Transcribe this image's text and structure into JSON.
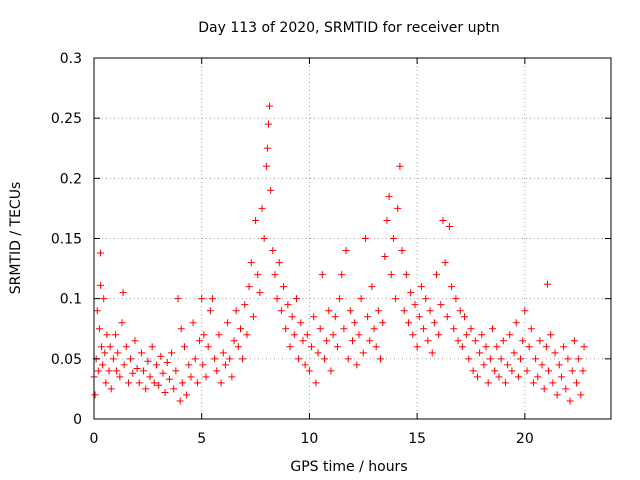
{
  "chart_data": {
    "type": "scatter",
    "title": "Day 113 of 2020, SRMTID for receiver uptn",
    "xlabel": "GPS time / hours",
    "ylabel": "SRMTID / TECUs",
    "xlim": [
      0,
      24
    ],
    "ylim": [
      0,
      0.3
    ],
    "x_ticks": [
      0,
      5,
      10,
      15,
      20
    ],
    "x_tick_labels": [
      "0",
      "5",
      "10",
      "15",
      "20"
    ],
    "y_ticks": [
      0,
      0.05,
      0.1,
      0.15,
      0.2,
      0.25,
      0.3
    ],
    "y_tick_labels": [
      "0",
      "0.05",
      "0.1",
      "0.15",
      "0.2",
      "0.25",
      "0.3"
    ],
    "grid": true,
    "marker": "+",
    "series_color": "#ff0000",
    "series": [
      {
        "name": "SRMTID",
        "points": [
          [
            0.0,
            0.035
          ],
          [
            0.05,
            0.02
          ],
          [
            0.1,
            0.05
          ],
          [
            0.15,
            0.09
          ],
          [
            0.2,
            0.04
          ],
          [
            0.25,
            0.075
          ],
          [
            0.3,
            0.111
          ],
          [
            0.3,
            0.138
          ],
          [
            0.35,
            0.06
          ],
          [
            0.4,
            0.045
          ],
          [
            0.45,
            0.1
          ],
          [
            0.5,
            0.055
          ],
          [
            0.55,
            0.03
          ],
          [
            0.6,
            0.07
          ],
          [
            0.7,
            0.04
          ],
          [
            0.75,
            0.06
          ],
          [
            0.8,
            0.025
          ],
          [
            0.9,
            0.05
          ],
          [
            1.0,
            0.07
          ],
          [
            1.05,
            0.04
          ],
          [
            1.1,
            0.055
          ],
          [
            1.2,
            0.035
          ],
          [
            1.3,
            0.08
          ],
          [
            1.35,
            0.105
          ],
          [
            1.4,
            0.045
          ],
          [
            1.5,
            0.06
          ],
          [
            1.6,
            0.03
          ],
          [
            1.7,
            0.05
          ],
          [
            1.8,
            0.038
          ],
          [
            1.9,
            0.065
          ],
          [
            2.0,
            0.042
          ],
          [
            2.1,
            0.03
          ],
          [
            2.2,
            0.055
          ],
          [
            2.3,
            0.04
          ],
          [
            2.4,
            0.025
          ],
          [
            2.5,
            0.048
          ],
          [
            2.6,
            0.035
          ],
          [
            2.7,
            0.06
          ],
          [
            2.8,
            0.03
          ],
          [
            2.9,
            0.045
          ],
          [
            3.0,
            0.028
          ],
          [
            3.1,
            0.052
          ],
          [
            3.2,
            0.038
          ],
          [
            3.3,
            0.022
          ],
          [
            3.4,
            0.047
          ],
          [
            3.5,
            0.033
          ],
          [
            3.6,
            0.055
          ],
          [
            3.7,
            0.025
          ],
          [
            3.8,
            0.04
          ],
          [
            3.9,
            0.1
          ],
          [
            4.0,
            0.015
          ],
          [
            4.05,
            0.075
          ],
          [
            4.1,
            0.03
          ],
          [
            4.2,
            0.06
          ],
          [
            4.3,
            0.02
          ],
          [
            4.4,
            0.045
          ],
          [
            4.5,
            0.035
          ],
          [
            4.6,
            0.08
          ],
          [
            4.7,
            0.05
          ],
          [
            4.8,
            0.03
          ],
          [
            4.9,
            0.065
          ],
          [
            5.0,
            0.1
          ],
          [
            5.05,
            0.045
          ],
          [
            5.1,
            0.07
          ],
          [
            5.2,
            0.035
          ],
          [
            5.3,
            0.06
          ],
          [
            5.4,
            0.09
          ],
          [
            5.5,
            0.1
          ],
          [
            5.6,
            0.05
          ],
          [
            5.7,
            0.04
          ],
          [
            5.8,
            0.07
          ],
          [
            5.9,
            0.03
          ],
          [
            6.0,
            0.055
          ],
          [
            6.1,
            0.045
          ],
          [
            6.2,
            0.08
          ],
          [
            6.3,
            0.05
          ],
          [
            6.4,
            0.035
          ],
          [
            6.5,
            0.065
          ],
          [
            6.6,
            0.09
          ],
          [
            6.7,
            0.06
          ],
          [
            6.8,
            0.075
          ],
          [
            6.9,
            0.05
          ],
          [
            7.0,
            0.095
          ],
          [
            7.1,
            0.07
          ],
          [
            7.2,
            0.11
          ],
          [
            7.3,
            0.13
          ],
          [
            7.4,
            0.085
          ],
          [
            7.5,
            0.165
          ],
          [
            7.6,
            0.12
          ],
          [
            7.7,
            0.105
          ],
          [
            7.8,
            0.175
          ],
          [
            7.9,
            0.15
          ],
          [
            8.0,
            0.21
          ],
          [
            8.05,
            0.225
          ],
          [
            8.1,
            0.245
          ],
          [
            8.15,
            0.26
          ],
          [
            8.2,
            0.19
          ],
          [
            8.3,
            0.14
          ],
          [
            8.4,
            0.12
          ],
          [
            8.5,
            0.1
          ],
          [
            8.6,
            0.13
          ],
          [
            8.7,
            0.09
          ],
          [
            8.8,
            0.11
          ],
          [
            8.9,
            0.075
          ],
          [
            9.0,
            0.095
          ],
          [
            9.1,
            0.06
          ],
          [
            9.2,
            0.085
          ],
          [
            9.3,
            0.07
          ],
          [
            9.4,
            0.1
          ],
          [
            9.5,
            0.05
          ],
          [
            9.6,
            0.08
          ],
          [
            9.7,
            0.065
          ],
          [
            9.8,
            0.045
          ],
          [
            9.9,
            0.07
          ],
          [
            10.0,
            0.04
          ],
          [
            10.1,
            0.06
          ],
          [
            10.2,
            0.085
          ],
          [
            10.3,
            0.03
          ],
          [
            10.4,
            0.055
          ],
          [
            10.5,
            0.075
          ],
          [
            10.6,
            0.12
          ],
          [
            10.7,
            0.05
          ],
          [
            10.8,
            0.065
          ],
          [
            10.9,
            0.09
          ],
          [
            11.0,
            0.04
          ],
          [
            11.1,
            0.07
          ],
          [
            11.2,
            0.085
          ],
          [
            11.3,
            0.06
          ],
          [
            11.4,
            0.1
          ],
          [
            11.5,
            0.12
          ],
          [
            11.6,
            0.075
          ],
          [
            11.7,
            0.14
          ],
          [
            11.8,
            0.05
          ],
          [
            11.9,
            0.09
          ],
          [
            12.0,
            0.065
          ],
          [
            12.1,
            0.08
          ],
          [
            12.2,
            0.045
          ],
          [
            12.3,
            0.07
          ],
          [
            12.4,
            0.1
          ],
          [
            12.5,
            0.055
          ],
          [
            12.6,
            0.15
          ],
          [
            12.7,
            0.085
          ],
          [
            12.8,
            0.065
          ],
          [
            12.9,
            0.11
          ],
          [
            13.0,
            0.075
          ],
          [
            13.1,
            0.06
          ],
          [
            13.2,
            0.09
          ],
          [
            13.3,
            0.05
          ],
          [
            13.4,
            0.08
          ],
          [
            13.5,
            0.135
          ],
          [
            13.6,
            0.165
          ],
          [
            13.7,
            0.185
          ],
          [
            13.8,
            0.12
          ],
          [
            13.9,
            0.15
          ],
          [
            14.0,
            0.1
          ],
          [
            14.1,
            0.175
          ],
          [
            14.2,
            0.21
          ],
          [
            14.3,
            0.14
          ],
          [
            14.4,
            0.09
          ],
          [
            14.5,
            0.12
          ],
          [
            14.6,
            0.08
          ],
          [
            14.7,
            0.105
          ],
          [
            14.8,
            0.07
          ],
          [
            14.9,
            0.095
          ],
          [
            15.0,
            0.06
          ],
          [
            15.1,
            0.085
          ],
          [
            15.2,
            0.11
          ],
          [
            15.3,
            0.075
          ],
          [
            15.4,
            0.1
          ],
          [
            15.5,
            0.065
          ],
          [
            15.6,
            0.09
          ],
          [
            15.7,
            0.055
          ],
          [
            15.8,
            0.08
          ],
          [
            15.9,
            0.12
          ],
          [
            16.0,
            0.07
          ],
          [
            16.1,
            0.095
          ],
          [
            16.2,
            0.165
          ],
          [
            16.3,
            0.13
          ],
          [
            16.4,
            0.085
          ],
          [
            16.5,
            0.16
          ],
          [
            16.6,
            0.11
          ],
          [
            16.7,
            0.075
          ],
          [
            16.8,
            0.1
          ],
          [
            16.9,
            0.065
          ],
          [
            17.0,
            0.09
          ],
          [
            17.1,
            0.06
          ],
          [
            17.2,
            0.085
          ],
          [
            17.3,
            0.07
          ],
          [
            17.4,
            0.05
          ],
          [
            17.5,
            0.075
          ],
          [
            17.6,
            0.04
          ],
          [
            17.7,
            0.065
          ],
          [
            17.8,
            0.035
          ],
          [
            17.9,
            0.055
          ],
          [
            18.0,
            0.07
          ],
          [
            18.1,
            0.045
          ],
          [
            18.2,
            0.06
          ],
          [
            18.3,
            0.03
          ],
          [
            18.4,
            0.05
          ],
          [
            18.5,
            0.075
          ],
          [
            18.6,
            0.04
          ],
          [
            18.7,
            0.06
          ],
          [
            18.8,
            0.035
          ],
          [
            18.9,
            0.05
          ],
          [
            19.0,
            0.065
          ],
          [
            19.1,
            0.03
          ],
          [
            19.2,
            0.045
          ],
          [
            19.3,
            0.07
          ],
          [
            19.4,
            0.04
          ],
          [
            19.5,
            0.055
          ],
          [
            19.6,
            0.08
          ],
          [
            19.7,
            0.035
          ],
          [
            19.8,
            0.05
          ],
          [
            19.9,
            0.065
          ],
          [
            20.0,
            0.09
          ],
          [
            20.1,
            0.04
          ],
          [
            20.2,
            0.06
          ],
          [
            20.3,
            0.075
          ],
          [
            20.4,
            0.03
          ],
          [
            20.5,
            0.05
          ],
          [
            20.6,
            0.035
          ],
          [
            20.7,
            0.065
          ],
          [
            20.8,
            0.045
          ],
          [
            20.9,
            0.025
          ],
          [
            21.0,
            0.06
          ],
          [
            21.05,
            0.112
          ],
          [
            21.1,
            0.04
          ],
          [
            21.2,
            0.07
          ],
          [
            21.3,
            0.03
          ],
          [
            21.4,
            0.055
          ],
          [
            21.5,
            0.02
          ],
          [
            21.6,
            0.045
          ],
          [
            21.7,
            0.035
          ],
          [
            21.8,
            0.06
          ],
          [
            21.9,
            0.025
          ],
          [
            22.0,
            0.05
          ],
          [
            22.1,
            0.015
          ],
          [
            22.2,
            0.04
          ],
          [
            22.3,
            0.065
          ],
          [
            22.4,
            0.03
          ],
          [
            22.5,
            0.05
          ],
          [
            22.6,
            0.02
          ],
          [
            22.7,
            0.04
          ],
          [
            22.75,
            0.06
          ]
        ]
      }
    ]
  }
}
